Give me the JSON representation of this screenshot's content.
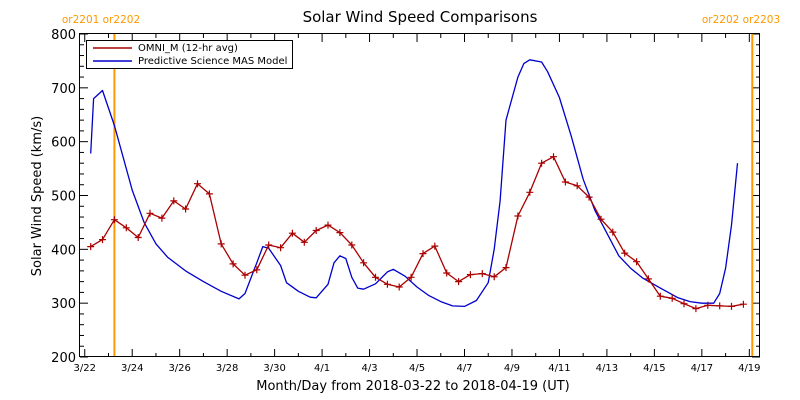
{
  "chart_data": {
    "type": "line",
    "title": "Solar Wind Speed Comparisons",
    "xlabel": "Month/Day from 2018-03-22 to 2018-04-19 (UT)",
    "ylabel": "Solar Wind Speed (km/s)",
    "ylim": [
      200,
      800
    ],
    "xlim": [
      "2018-03-22",
      "2018-04-19"
    ],
    "yticks": [
      200,
      300,
      400,
      500,
      600,
      700,
      800
    ],
    "xtick_labels": [
      "3/22",
      "3/24",
      "3/26",
      "3/28",
      "3/30",
      "4/1",
      "4/3",
      "4/5",
      "4/7",
      "4/9",
      "4/11",
      "4/13",
      "4/15",
      "4/17",
      "4/19"
    ],
    "xtick_dates": [
      "2018-03-22",
      "2018-03-24",
      "2018-03-26",
      "2018-03-28",
      "2018-03-30",
      "2018-04-01",
      "2018-04-03",
      "2018-04-05",
      "2018-04-07",
      "2018-04-09",
      "2018-04-11",
      "2018-04-13",
      "2018-04-15",
      "2018-04-17",
      "2018-04-19"
    ],
    "grid": false,
    "legend": "top-left",
    "carrington_markers": [
      {
        "date": "2018-03-23 06:00",
        "label": "or2201 or2202",
        "color": "#ff9900"
      },
      {
        "date": "2018-04-19 03:00",
        "label": "or2202 or2203",
        "color": "#ff9900"
      }
    ],
    "series": [
      {
        "name": "OMNI_M (12-hr avg)",
        "color": "#aa0000",
        "marker": "+",
        "points": [
          [
            "2018-03-22 06:00",
            405
          ],
          [
            "2018-03-22 18:00",
            418
          ],
          [
            "2018-03-23 06:00",
            455
          ],
          [
            "2018-03-23 18:00",
            440
          ],
          [
            "2018-03-24 06:00",
            422
          ],
          [
            "2018-03-24 18:00",
            467
          ],
          [
            "2018-03-25 06:00",
            458
          ],
          [
            "2018-03-25 18:00",
            490
          ],
          [
            "2018-03-26 06:00",
            475
          ],
          [
            "2018-03-26 18:00",
            522
          ],
          [
            "2018-03-27 06:00",
            503
          ],
          [
            "2018-03-27 18:00",
            410
          ],
          [
            "2018-03-28 06:00",
            373
          ],
          [
            "2018-03-28 18:00",
            352
          ],
          [
            "2018-03-29 06:00",
            362
          ],
          [
            "2018-03-29 18:00",
            408
          ],
          [
            "2018-03-30 06:00",
            403
          ],
          [
            "2018-03-30 18:00",
            430
          ],
          [
            "2018-03-31 06:00",
            413
          ],
          [
            "2018-03-31 18:00",
            435
          ],
          [
            "2018-04-01 06:00",
            445
          ],
          [
            "2018-04-01 18:00",
            431
          ],
          [
            "2018-04-02 06:00",
            408
          ],
          [
            "2018-04-02 18:00",
            375
          ],
          [
            "2018-04-03 06:00",
            348
          ],
          [
            "2018-04-03 18:00",
            335
          ],
          [
            "2018-04-04 06:00",
            330
          ],
          [
            "2018-04-04 18:00",
            348
          ],
          [
            "2018-04-05 06:00",
            392
          ],
          [
            "2018-04-05 18:00",
            406
          ],
          [
            "2018-04-06 06:00",
            356
          ],
          [
            "2018-04-06 18:00",
            340
          ],
          [
            "2018-04-07 06:00",
            353
          ],
          [
            "2018-04-07 18:00",
            355
          ],
          [
            "2018-04-08 06:00",
            349
          ],
          [
            "2018-04-08 18:00",
            366
          ],
          [
            "2018-04-09 06:00",
            462
          ],
          [
            "2018-04-09 18:00",
            506
          ],
          [
            "2018-04-10 06:00",
            560
          ],
          [
            "2018-04-10 18:00",
            572
          ],
          [
            "2018-04-11 06:00",
            525
          ],
          [
            "2018-04-11 18:00",
            518
          ],
          [
            "2018-04-12 06:00",
            497
          ],
          [
            "2018-04-12 18:00",
            456
          ],
          [
            "2018-04-13 06:00",
            432
          ],
          [
            "2018-04-13 18:00",
            393
          ],
          [
            "2018-04-14 06:00",
            377
          ],
          [
            "2018-04-14 18:00",
            345
          ],
          [
            "2018-04-15 06:00",
            313
          ],
          [
            "2018-04-15 18:00",
            309
          ],
          [
            "2018-04-16 06:00",
            299
          ],
          [
            "2018-04-16 18:00",
            290
          ],
          [
            "2018-04-17 06:00",
            296
          ],
          [
            "2018-04-17 18:00",
            295
          ],
          [
            "2018-04-18 06:00",
            294
          ],
          [
            "2018-04-18 18:00",
            298
          ]
        ]
      },
      {
        "name": "Predictive Science MAS Model",
        "color": "#0000cc",
        "marker": "none",
        "points": [
          [
            "2018-03-22 06:00",
            578
          ],
          [
            "2018-03-22 09:00",
            680
          ],
          [
            "2018-03-22 18:00",
            695
          ],
          [
            "2018-03-23 06:00",
            630
          ],
          [
            "2018-03-24 00:00",
            510
          ],
          [
            "2018-03-24 12:00",
            450
          ],
          [
            "2018-03-25 00:00",
            410
          ],
          [
            "2018-03-25 12:00",
            385
          ],
          [
            "2018-03-26 06:00",
            360
          ],
          [
            "2018-03-27 00:00",
            340
          ],
          [
            "2018-03-27 18:00",
            322
          ],
          [
            "2018-03-28 12:00",
            308
          ],
          [
            "2018-03-28 18:00",
            318
          ],
          [
            "2018-03-29 06:00",
            375
          ],
          [
            "2018-03-29 12:00",
            405
          ],
          [
            "2018-03-29 18:00",
            402
          ],
          [
            "2018-03-30 06:00",
            370
          ],
          [
            "2018-03-30 12:00",
            338
          ],
          [
            "2018-03-31 00:00",
            322
          ],
          [
            "2018-03-31 12:00",
            311
          ],
          [
            "2018-03-31 18:00",
            310
          ],
          [
            "2018-04-01 06:00",
            335
          ],
          [
            "2018-04-01 12:00",
            375
          ],
          [
            "2018-04-01 18:00",
            388
          ],
          [
            "2018-04-02 00:00",
            383
          ],
          [
            "2018-04-02 06:00",
            348
          ],
          [
            "2018-04-02 12:00",
            328
          ],
          [
            "2018-04-02 18:00",
            326
          ],
          [
            "2018-04-03 06:00",
            336
          ],
          [
            "2018-04-03 18:00",
            358
          ],
          [
            "2018-04-04 00:00",
            363
          ],
          [
            "2018-04-04 12:00",
            350
          ],
          [
            "2018-04-05 00:00",
            330
          ],
          [
            "2018-04-05 12:00",
            314
          ],
          [
            "2018-04-06 00:00",
            303
          ],
          [
            "2018-04-06 12:00",
            295
          ],
          [
            "2018-04-07 00:00",
            294
          ],
          [
            "2018-04-07 12:00",
            305
          ],
          [
            "2018-04-08 00:00",
            338
          ],
          [
            "2018-04-08 06:00",
            400
          ],
          [
            "2018-04-08 12:00",
            490
          ],
          [
            "2018-04-08 18:00",
            640
          ],
          [
            "2018-04-09 06:00",
            720
          ],
          [
            "2018-04-09 12:00",
            745
          ],
          [
            "2018-04-09 18:00",
            752
          ],
          [
            "2018-04-10 06:00",
            748
          ],
          [
            "2018-04-10 12:00",
            730
          ],
          [
            "2018-04-11 00:00",
            682
          ],
          [
            "2018-04-11 12:00",
            610
          ],
          [
            "2018-04-12 00:00",
            530
          ],
          [
            "2018-04-12 12:00",
            472
          ],
          [
            "2018-04-13 00:00",
            430
          ],
          [
            "2018-04-13 12:00",
            388
          ],
          [
            "2018-04-14 00:00",
            365
          ],
          [
            "2018-04-14 12:00",
            347
          ],
          [
            "2018-04-15 06:00",
            328
          ],
          [
            "2018-04-16 00:00",
            310
          ],
          [
            "2018-04-16 12:00",
            303
          ],
          [
            "2018-04-17 00:00",
            300
          ],
          [
            "2018-04-17 12:00",
            300
          ],
          [
            "2018-04-17 18:00",
            318
          ],
          [
            "2018-04-18 00:00",
            365
          ],
          [
            "2018-04-18 06:00",
            445
          ],
          [
            "2018-04-18 12:00",
            560
          ]
        ]
      }
    ]
  }
}
